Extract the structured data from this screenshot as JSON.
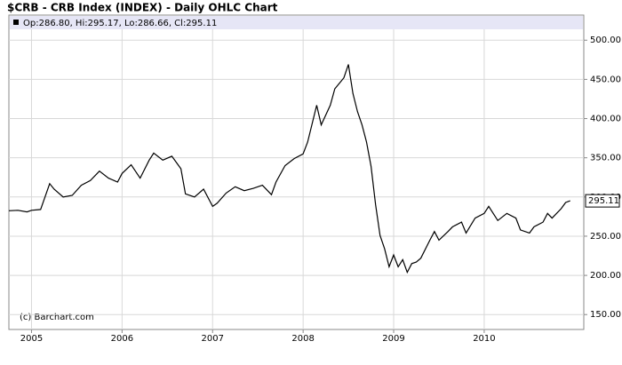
{
  "chart_data": {
    "type": "line",
    "title": "$CRB - CRB Index (INDEX) - Daily OHLC Chart",
    "legend_text": "Op:286.80, Hi:295.17, Lo:286.66, Cl:295.11",
    "last_price_label": "295.11",
    "credit": "(c) Barchart.com",
    "xlim": [
      2004.75,
      2011.1
    ],
    "xticks": [
      2005,
      2006,
      2007,
      2008,
      2009,
      2010
    ],
    "ylim": [
      131,
      532
    ],
    "yticks": [
      {
        "value": 150,
        "label": "150.00"
      },
      {
        "value": 200,
        "label": "200.00"
      },
      {
        "value": 250,
        "label": "250.00"
      },
      {
        "value": 300,
        "label": "300.00"
      },
      {
        "value": 350,
        "label": "350.00"
      },
      {
        "value": 400,
        "label": "400.00"
      },
      {
        "value": 450,
        "label": "450.00"
      },
      {
        "value": 500,
        "label": "500.00"
      }
    ],
    "grid": true,
    "series": [
      {
        "name": "CRB",
        "color": "#000000",
        "x": [
          2004.75,
          2004.85,
          2004.95,
          2005.0,
          2005.1,
          2005.2,
          2005.25,
          2005.35,
          2005.45,
          2005.55,
          2005.65,
          2005.75,
          2005.85,
          2005.95,
          2006.0,
          2006.1,
          2006.2,
          2006.3,
          2006.35,
          2006.45,
          2006.55,
          2006.65,
          2006.7,
          2006.8,
          2006.9,
          2007.0,
          2007.05,
          2007.15,
          2007.25,
          2007.35,
          2007.45,
          2007.55,
          2007.65,
          2007.7,
          2007.8,
          2007.9,
          2008.0,
          2008.05,
          2008.15,
          2008.2,
          2008.3,
          2008.35,
          2008.45,
          2008.5,
          2008.55,
          2008.6,
          2008.65,
          2008.7,
          2008.75,
          2008.8,
          2008.85,
          2008.9,
          2008.95,
          2009.0,
          2009.05,
          2009.1,
          2009.15,
          2009.2,
          2009.25,
          2009.3,
          2009.4,
          2009.45,
          2009.5,
          2009.6,
          2009.65,
          2009.75,
          2009.8,
          2009.9,
          2010.0,
          2010.05,
          2010.15,
          2010.25,
          2010.35,
          2010.4,
          2010.5,
          2010.55,
          2010.65,
          2010.7,
          2010.75,
          2010.85,
          2010.9,
          2010.95
        ],
        "values": [
          282.5,
          283,
          281,
          283,
          284,
          317,
          310,
          300,
          302,
          315,
          321,
          333,
          324,
          319,
          330,
          341,
          324,
          347,
          356,
          347,
          352,
          336,
          304,
          300,
          310,
          288,
          292,
          305,
          313,
          308,
          311,
          315,
          303,
          319,
          340,
          349,
          355,
          370,
          417,
          392,
          417,
          438,
          452,
          469,
          432,
          409,
          392,
          370,
          339,
          290,
          251,
          234,
          211,
          226,
          211,
          220,
          204,
          215,
          217,
          222,
          245,
          256,
          245,
          256,
          262,
          268,
          254,
          273,
          279,
          288,
          270,
          279,
          273,
          258,
          254,
          262,
          268,
          279,
          273,
          285,
          293,
          295.11
        ]
      }
    ]
  }
}
